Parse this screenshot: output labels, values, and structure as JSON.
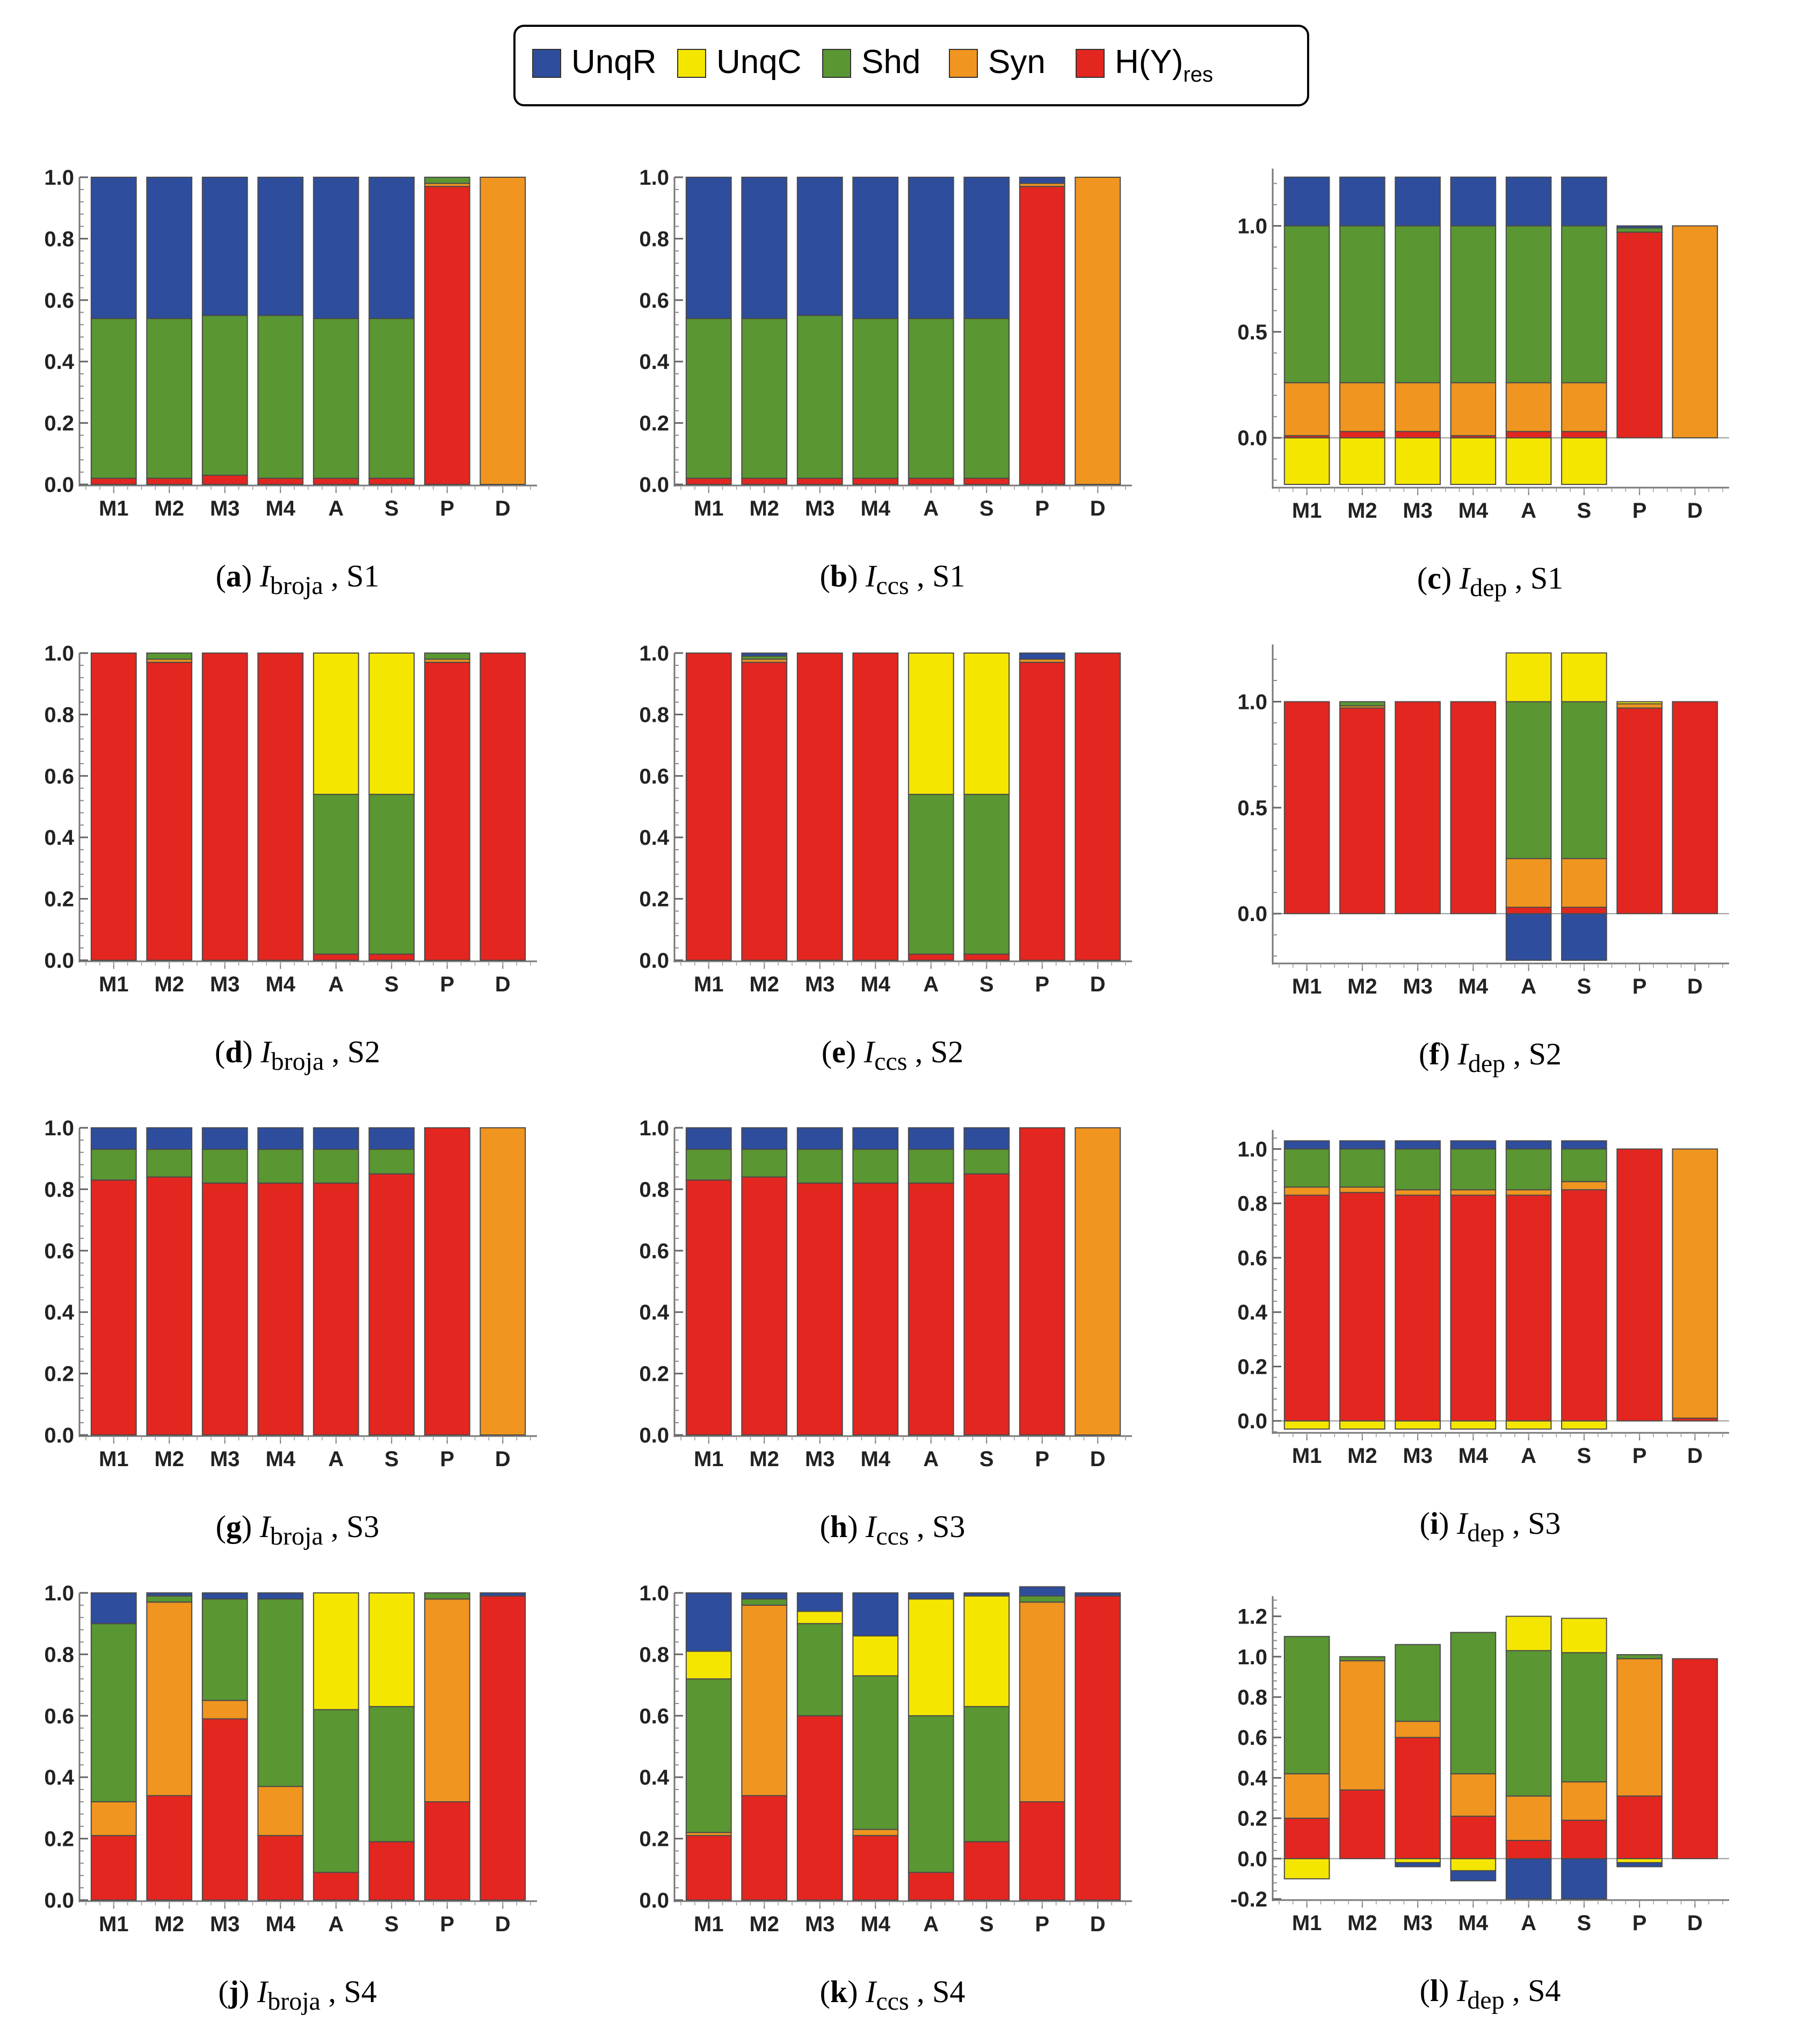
{
  "legend": {
    "items": [
      {
        "key": "UnqR",
        "label": "UnqR",
        "sub": "",
        "color": "#2e4d9c"
      },
      {
        "key": "UnqC",
        "label": "UnqC",
        "sub": "",
        "color": "#f5e600"
      },
      {
        "key": "Shd",
        "label": "Shd",
        "sub": "",
        "color": "#5a9632"
      },
      {
        "key": "Syn",
        "label": "Syn",
        "sub": "",
        "color": "#f0951f"
      },
      {
        "key": "Hres",
        "label": "H(Y)",
        "sub": "res",
        "color": "#e32620"
      }
    ]
  },
  "categories": [
    "M1",
    "M2",
    "M3",
    "M4",
    "A",
    "S",
    "P",
    "D"
  ],
  "chart_data": [
    {
      "id": "a",
      "type": "bar",
      "stacked": true,
      "caption": {
        "letter": "a",
        "measure": "I",
        "measure_sub": "broja",
        "scenario": ", S1"
      },
      "ylim": [
        0,
        1.0
      ],
      "yticks": [
        "0.0",
        "0.2",
        "0.4",
        "0.6",
        "0.8",
        "1.0"
      ],
      "ytick_values": [
        0,
        0.2,
        0.4,
        0.6,
        0.8,
        1.0
      ],
      "series": [
        {
          "key": "Hres",
          "values": [
            0.02,
            0.02,
            0.03,
            0.02,
            0.02,
            0.02,
            0.97,
            0
          ]
        },
        {
          "key": "Syn",
          "values": [
            0,
            0,
            0,
            0,
            0,
            0,
            0.01,
            1.0
          ]
        },
        {
          "key": "Shd",
          "values": [
            0.52,
            0.52,
            0.52,
            0.53,
            0.52,
            0.52,
            0.02,
            0
          ]
        },
        {
          "key": "UnqC",
          "values": [
            0,
            0,
            0,
            0,
            0,
            0,
            0,
            0
          ]
        },
        {
          "key": "UnqR",
          "values": [
            0.46,
            0.46,
            0.45,
            0.45,
            0.46,
            0.46,
            0,
            0
          ]
        }
      ]
    },
    {
      "id": "b",
      "type": "bar",
      "stacked": true,
      "caption": {
        "letter": "b",
        "measure": "I",
        "measure_sub": "ccs",
        "scenario": ", S1"
      },
      "ylim": [
        0,
        1.0
      ],
      "yticks": [
        "0.0",
        "0.2",
        "0.4",
        "0.6",
        "0.8",
        "1.0"
      ],
      "ytick_values": [
        0,
        0.2,
        0.4,
        0.6,
        0.8,
        1.0
      ],
      "series": [
        {
          "key": "Hres",
          "values": [
            0.02,
            0.02,
            0.02,
            0.02,
            0.02,
            0.02,
            0.97,
            0
          ]
        },
        {
          "key": "Syn",
          "values": [
            0,
            0,
            0,
            0,
            0,
            0,
            0.01,
            1.0
          ]
        },
        {
          "key": "Shd",
          "values": [
            0.52,
            0.52,
            0.53,
            0.52,
            0.52,
            0.52,
            0,
            0
          ]
        },
        {
          "key": "UnqC",
          "values": [
            0,
            0,
            0,
            0,
            0,
            0,
            0,
            0
          ]
        },
        {
          "key": "UnqR",
          "values": [
            0.46,
            0.46,
            0.45,
            0.46,
            0.46,
            0.46,
            0.02,
            0
          ]
        }
      ]
    },
    {
      "id": "c",
      "type": "bar",
      "stacked": true,
      "caption": {
        "letter": "c",
        "measure": "I",
        "measure_sub": "dep",
        "scenario": ", S1"
      },
      "ylim": [
        -0.23,
        1.27
      ],
      "yticks": [
        "0.0",
        "0.5",
        "1.0"
      ],
      "ytick_values": [
        0,
        0.5,
        1.0
      ],
      "series": [
        {
          "key": "UnqC",
          "values": [
            -0.22,
            -0.22,
            -0.22,
            -0.22,
            -0.22,
            -0.22,
            0,
            0
          ]
        },
        {
          "key": "Hres",
          "values": [
            0.01,
            0.03,
            0.03,
            0.01,
            0.03,
            0.03,
            0.97,
            0
          ]
        },
        {
          "key": "Syn",
          "values": [
            0.25,
            0.23,
            0.23,
            0.25,
            0.23,
            0.23,
            0,
            1.0
          ]
        },
        {
          "key": "Shd",
          "values": [
            0.74,
            0.74,
            0.74,
            0.74,
            0.74,
            0.74,
            0.02,
            0
          ]
        },
        {
          "key": "UnqR",
          "values": [
            0.23,
            0.23,
            0.23,
            0.23,
            0.23,
            0.23,
            0.01,
            0
          ]
        }
      ]
    },
    {
      "id": "d",
      "type": "bar",
      "stacked": true,
      "caption": {
        "letter": "d",
        "measure": "I",
        "measure_sub": "broja",
        "scenario": ", S2"
      },
      "ylim": [
        0,
        1.0
      ],
      "yticks": [
        "0.0",
        "0.2",
        "0.4",
        "0.6",
        "0.8",
        "1.0"
      ],
      "ytick_values": [
        0,
        0.2,
        0.4,
        0.6,
        0.8,
        1.0
      ],
      "series": [
        {
          "key": "Hres",
          "values": [
            1.0,
            0.97,
            1.0,
            1.0,
            0.02,
            0.02,
            0.97,
            1.0
          ]
        },
        {
          "key": "Syn",
          "values": [
            0,
            0.01,
            0,
            0,
            0,
            0,
            0.01,
            0
          ]
        },
        {
          "key": "Shd",
          "values": [
            0,
            0.02,
            0,
            0,
            0.52,
            0.52,
            0.02,
            0
          ]
        },
        {
          "key": "UnqC",
          "values": [
            0,
            0,
            0,
            0,
            0.46,
            0.46,
            0,
            0
          ]
        },
        {
          "key": "UnqR",
          "values": [
            0,
            0,
            0,
            0,
            0,
            0,
            0,
            0
          ]
        }
      ]
    },
    {
      "id": "e",
      "type": "bar",
      "stacked": true,
      "caption": {
        "letter": "e",
        "measure": "I",
        "measure_sub": "ccs",
        "scenario": ", S2"
      },
      "ylim": [
        0,
        1.0
      ],
      "yticks": [
        "0.0",
        "0.2",
        "0.4",
        "0.6",
        "0.8",
        "1.0"
      ],
      "ytick_values": [
        0,
        0.2,
        0.4,
        0.6,
        0.8,
        1.0
      ],
      "series": [
        {
          "key": "Hres",
          "values": [
            1.0,
            0.97,
            1.0,
            1.0,
            0.02,
            0.02,
            0.97,
            1.0
          ]
        },
        {
          "key": "Syn",
          "values": [
            0,
            0.01,
            0,
            0,
            0,
            0,
            0.01,
            0
          ]
        },
        {
          "key": "Shd",
          "values": [
            0,
            0.01,
            0,
            0,
            0.52,
            0.52,
            0,
            0
          ]
        },
        {
          "key": "UnqC",
          "values": [
            0,
            0,
            0,
            0,
            0.46,
            0.46,
            0,
            0
          ]
        },
        {
          "key": "UnqR",
          "values": [
            0,
            0.01,
            0,
            0,
            0,
            0,
            0.02,
            0
          ]
        }
      ]
    },
    {
      "id": "f",
      "type": "bar",
      "stacked": true,
      "caption": {
        "letter": "f",
        "measure": "I",
        "measure_sub": "dep",
        "scenario": ", S2"
      },
      "ylim": [
        -0.23,
        1.27
      ],
      "yticks": [
        "0.0",
        "0.5",
        "1.0"
      ],
      "ytick_values": [
        0,
        0.5,
        1.0
      ],
      "series": [
        {
          "key": "UnqR",
          "values": [
            0,
            0,
            0,
            0,
            -0.22,
            -0.22,
            0,
            0
          ]
        },
        {
          "key": "Hres",
          "values": [
            1.0,
            0.97,
            1.0,
            1.0,
            0.03,
            0.03,
            0.97,
            1.0
          ]
        },
        {
          "key": "Syn",
          "values": [
            0,
            0.01,
            0,
            0,
            0.23,
            0.23,
            0.02,
            0
          ]
        },
        {
          "key": "Shd",
          "values": [
            0,
            0.02,
            0,
            0,
            0.74,
            0.74,
            0,
            0
          ]
        },
        {
          "key": "UnqC",
          "values": [
            0,
            0,
            0,
            0,
            0.23,
            0.23,
            0.01,
            0
          ]
        }
      ]
    },
    {
      "id": "g",
      "type": "bar",
      "stacked": true,
      "caption": {
        "letter": "g",
        "measure": "I",
        "measure_sub": "broja",
        "scenario": ", S3"
      },
      "ylim": [
        0,
        1.0
      ],
      "yticks": [
        "0.0",
        "0.2",
        "0.4",
        "0.6",
        "0.8",
        "1.0"
      ],
      "ytick_values": [
        0,
        0.2,
        0.4,
        0.6,
        0.8,
        1.0
      ],
      "series": [
        {
          "key": "Hres",
          "values": [
            0.83,
            0.84,
            0.82,
            0.82,
            0.82,
            0.85,
            1.0,
            0
          ]
        },
        {
          "key": "Syn",
          "values": [
            0,
            0,
            0,
            0,
            0,
            0,
            0,
            1.0
          ]
        },
        {
          "key": "Shd",
          "values": [
            0.1,
            0.09,
            0.11,
            0.11,
            0.11,
            0.08,
            0,
            0
          ]
        },
        {
          "key": "UnqC",
          "values": [
            0,
            0,
            0,
            0,
            0,
            0,
            0,
            0
          ]
        },
        {
          "key": "UnqR",
          "values": [
            0.07,
            0.07,
            0.07,
            0.07,
            0.07,
            0.07,
            0,
            0
          ]
        }
      ]
    },
    {
      "id": "h",
      "type": "bar",
      "stacked": true,
      "caption": {
        "letter": "h",
        "measure": "I",
        "measure_sub": "ccs",
        "scenario": ", S3"
      },
      "ylim": [
        0,
        1.0
      ],
      "yticks": [
        "0.0",
        "0.2",
        "0.4",
        "0.6",
        "0.8",
        "1.0"
      ],
      "ytick_values": [
        0,
        0.2,
        0.4,
        0.6,
        0.8,
        1.0
      ],
      "series": [
        {
          "key": "Hres",
          "values": [
            0.83,
            0.84,
            0.82,
            0.82,
            0.82,
            0.85,
            1.0,
            0
          ]
        },
        {
          "key": "Syn",
          "values": [
            0,
            0,
            0,
            0,
            0,
            0,
            0,
            1.0
          ]
        },
        {
          "key": "Shd",
          "values": [
            0.1,
            0.09,
            0.11,
            0.11,
            0.11,
            0.08,
            0,
            0
          ]
        },
        {
          "key": "UnqC",
          "values": [
            0,
            0,
            0,
            0,
            0,
            0,
            0,
            0
          ]
        },
        {
          "key": "UnqR",
          "values": [
            0.07,
            0.07,
            0.07,
            0.07,
            0.07,
            0.07,
            0,
            0
          ]
        }
      ]
    },
    {
      "id": "i",
      "type": "bar",
      "stacked": true,
      "caption": {
        "letter": "i",
        "measure": "I",
        "measure_sub": "dep",
        "scenario": ", S3"
      },
      "ylim": [
        -0.04,
        1.07
      ],
      "yticks": [
        "0.0",
        "0.2",
        "0.4",
        "0.6",
        "0.8",
        "1.0"
      ],
      "ytick_values": [
        0,
        0.2,
        0.4,
        0.6,
        0.8,
        1.0
      ],
      "series": [
        {
          "key": "UnqC",
          "values": [
            -0.03,
            -0.03,
            -0.03,
            -0.03,
            -0.03,
            -0.03,
            0,
            0
          ]
        },
        {
          "key": "Hres",
          "values": [
            0.83,
            0.84,
            0.83,
            0.83,
            0.83,
            0.85,
            1.0,
            0.01
          ]
        },
        {
          "key": "Syn",
          "values": [
            0.03,
            0.02,
            0.02,
            0.02,
            0.02,
            0.03,
            0,
            0.99
          ]
        },
        {
          "key": "Shd",
          "values": [
            0.14,
            0.14,
            0.15,
            0.15,
            0.15,
            0.12,
            0,
            0
          ]
        },
        {
          "key": "UnqR",
          "values": [
            0.03,
            0.03,
            0.03,
            0.03,
            0.03,
            0.03,
            0,
            0
          ]
        }
      ]
    },
    {
      "id": "j",
      "type": "bar",
      "stacked": true,
      "caption": {
        "letter": "j",
        "measure": "I",
        "measure_sub": "broja",
        "scenario": ", S4"
      },
      "ylim": [
        0,
        1.0
      ],
      "yticks": [
        "0.0",
        "0.2",
        "0.4",
        "0.6",
        "0.8",
        "1.0"
      ],
      "ytick_values": [
        0,
        0.2,
        0.4,
        0.6,
        0.8,
        1.0
      ],
      "series": [
        {
          "key": "Hres",
          "values": [
            0.21,
            0.34,
            0.59,
            0.21,
            0.09,
            0.19,
            0.32,
            0.99
          ]
        },
        {
          "key": "Syn",
          "values": [
            0.11,
            0.63,
            0.06,
            0.16,
            0,
            0,
            0.66,
            0
          ]
        },
        {
          "key": "Shd",
          "values": [
            0.58,
            0.02,
            0.33,
            0.61,
            0.53,
            0.44,
            0.02,
            0
          ]
        },
        {
          "key": "UnqC",
          "values": [
            0,
            0,
            0,
            0,
            0.38,
            0.37,
            0,
            0
          ]
        },
        {
          "key": "UnqR",
          "values": [
            0.1,
            0.01,
            0.02,
            0.02,
            0,
            0,
            0,
            0.01
          ]
        }
      ]
    },
    {
      "id": "k",
      "type": "bar",
      "stacked": true,
      "caption": {
        "letter": "k",
        "measure": "I",
        "measure_sub": "ccs",
        "scenario": ", S4"
      },
      "ylim": [
        0,
        1.0
      ],
      "yticks": [
        "0.0",
        "0.2",
        "0.4",
        "0.6",
        "0.8",
        "1.0"
      ],
      "ytick_values": [
        0,
        0.2,
        0.4,
        0.6,
        0.8,
        1.0
      ],
      "series": [
        {
          "key": "Hres",
          "values": [
            0.21,
            0.34,
            0.6,
            0.21,
            0.09,
            0.19,
            0.32,
            0.99
          ]
        },
        {
          "key": "Syn",
          "values": [
            0.01,
            0.62,
            0,
            0.02,
            0,
            0,
            0.65,
            0
          ]
        },
        {
          "key": "Shd",
          "values": [
            0.5,
            0.02,
            0.3,
            0.5,
            0.51,
            0.44,
            0.02,
            0
          ]
        },
        {
          "key": "UnqC",
          "values": [
            0.09,
            0,
            0.04,
            0.13,
            0.38,
            0.36,
            0,
            0
          ]
        },
        {
          "key": "UnqR",
          "values": [
            0.19,
            0.02,
            0.06,
            0.14,
            0.02,
            0.01,
            0.03,
            0.01
          ]
        }
      ]
    },
    {
      "id": "l",
      "type": "bar",
      "stacked": true,
      "caption": {
        "letter": "l",
        "measure": "I",
        "measure_sub": "dep",
        "scenario": ", S4"
      },
      "ylim": [
        -0.2,
        1.3
      ],
      "yticks": [
        "-0.2",
        "0.0",
        "0.2",
        "0.4",
        "0.6",
        "0.8",
        "1.0",
        "1.2"
      ],
      "ytick_values": [
        -0.2,
        0,
        0.2,
        0.4,
        0.6,
        0.8,
        1.0,
        1.2
      ],
      "series": [
        {
          "key": "UnqC",
          "values": [
            -0.1,
            0,
            -0.02,
            -0.06,
            0,
            0,
            -0.02,
            0
          ]
        },
        {
          "key": "UnqR",
          "values": [
            0,
            0,
            -0.02,
            -0.05,
            -0.2,
            -0.2,
            -0.02,
            0
          ]
        },
        {
          "key": "Hres",
          "values": [
            0.2,
            0.34,
            0.6,
            0.21,
            0.09,
            0.19,
            0.31,
            0.99
          ]
        },
        {
          "key": "Syn",
          "values": [
            0.22,
            0.64,
            0.08,
            0.21,
            0.22,
            0.19,
            0.68,
            0
          ]
        },
        {
          "key": "Shd",
          "values": [
            0.68,
            0.02,
            0.38,
            0.7,
            0.72,
            0.64,
            0.02,
            0
          ]
        },
        {
          "key": "UnqC",
          "values": [
            0,
            0,
            0,
            0,
            0.17,
            0.17,
            0,
            0
          ]
        }
      ]
    }
  ]
}
